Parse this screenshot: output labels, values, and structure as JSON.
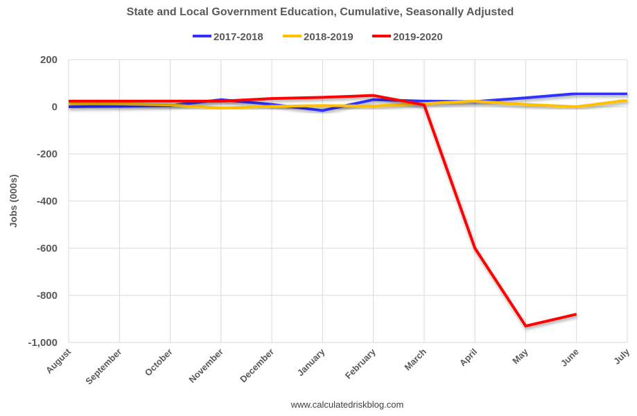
{
  "chart_data": {
    "type": "line",
    "title": "State and Local Government Education, Cumulative, Seasonally Adjusted",
    "ylabel": "Jobs (000s)",
    "xlabel": "",
    "categories": [
      "August",
      "September",
      "October",
      "November",
      "December",
      "January",
      "February",
      "March",
      "April",
      "May",
      "June",
      "July"
    ],
    "ylim": [
      -1000,
      200
    ],
    "yticks": [
      200,
      0,
      -200,
      -400,
      -600,
      -800,
      -1000
    ],
    "ytick_labels": [
      "200",
      "0",
      "-200",
      "-400",
      "-600",
      "-800",
      "-1,000"
    ],
    "grid": true,
    "legend_position": "top",
    "series": [
      {
        "name": "2017-2018",
        "color": "#3333ff",
        "values": [
          0,
          2,
          5,
          30,
          10,
          -16,
          30,
          24,
          22,
          38,
          56,
          56
        ]
      },
      {
        "name": "2018-2019",
        "color": "#ffc000",
        "values": [
          14,
          12,
          8,
          -6,
          2,
          5,
          3,
          14,
          24,
          10,
          0,
          28
        ]
      },
      {
        "name": "2019-2020",
        "color": "#ff0000",
        "values": [
          24,
          24,
          24,
          24,
          35,
          40,
          48,
          8,
          -600,
          -930,
          -880,
          null
        ]
      }
    ],
    "source": "www.calculatedriskblog.com"
  }
}
